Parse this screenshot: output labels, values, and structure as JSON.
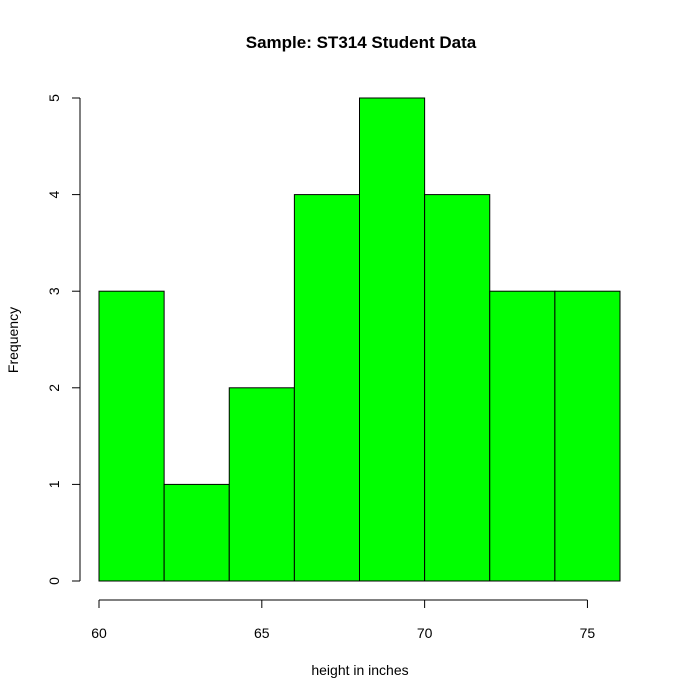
{
  "chart_data": {
    "type": "bar",
    "subtype": "histogram",
    "title": "Sample: ST314 Student Data",
    "xlabel": "height in inches",
    "ylabel": "Frequency",
    "bins": [
      {
        "start": 60,
        "end": 62,
        "count": 3
      },
      {
        "start": 62,
        "end": 64,
        "count": 1
      },
      {
        "start": 64,
        "end": 66,
        "count": 2
      },
      {
        "start": 66,
        "end": 68,
        "count": 4
      },
      {
        "start": 68,
        "end": 70,
        "count": 5
      },
      {
        "start": 70,
        "end": 72,
        "count": 4
      },
      {
        "start": 72,
        "end": 74,
        "count": 3
      },
      {
        "start": 74,
        "end": 76,
        "count": 3
      }
    ],
    "xticks": [
      "60",
      "65",
      "70",
      "75"
    ],
    "yticks": [
      "0",
      "1",
      "2",
      "3",
      "4",
      "5"
    ],
    "xlim": [
      60,
      76
    ],
    "ylim": [
      0,
      5
    ],
    "bar_color": "#00FF00",
    "bar_edge_color": "#000000",
    "grid": false,
    "legend": "none"
  }
}
